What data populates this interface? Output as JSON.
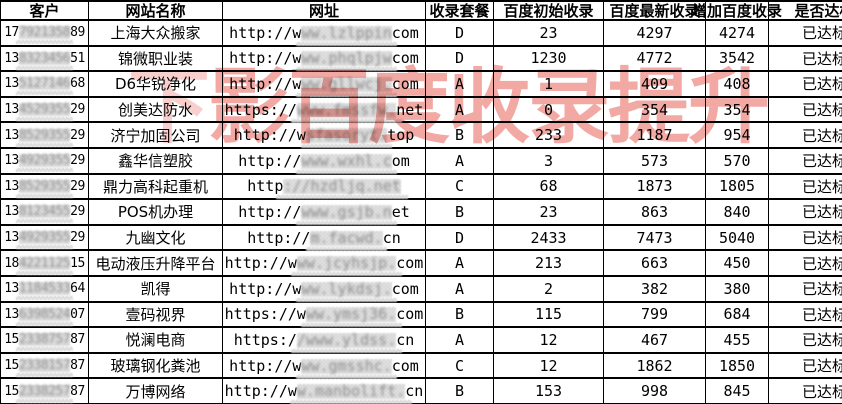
{
  "table": {
    "columns": [
      {
        "label": "客户"
      },
      {
        "label": "网站名称"
      },
      {
        "label": "网址"
      },
      {
        "label": "收录套餐"
      },
      {
        "label": "百度初始收录"
      },
      {
        "label": "百度最新收录"
      },
      {
        "label": "增加百度收录"
      },
      {
        "label": "是否达标"
      }
    ],
    "rows": [
      {
        "phone_pre": "17",
        "phone_hid": "7921358",
        "phone_suf": "89",
        "name": "上海大众搬家",
        "url_pre": "http://w",
        "url_hid": "ww.lzlppin",
        "url_suf": "com",
        "plan": "D",
        "init": "23",
        "last": "4297",
        "inc": "4274",
        "status": "已达标"
      },
      {
        "phone_pre": "13",
        "phone_hid": "8323456",
        "phone_suf": "51",
        "name": "锦微职业装",
        "url_pre": "http://w",
        "url_hid": "ww.phqlpjw",
        "url_suf": "com",
        "plan": "D",
        "init": "1230",
        "last": "4772",
        "inc": "3542",
        "status": "已达标"
      },
      {
        "phone_pre": "13",
        "phone_hid": "5127146",
        "phone_suf": "68",
        "name": "D6华锐净化",
        "url_pre": "http://w",
        "url_hid": "ww.gllwcj.",
        "url_suf": "com",
        "plan": "A",
        "init": "1",
        "last": "409",
        "inc": "408",
        "status": "已达标"
      },
      {
        "phone_pre": "13",
        "phone_hid": "4529355",
        "phone_suf": "29",
        "name": "创美达防水",
        "url_pre": "https://",
        "url_hid": "www.fmssfw.",
        "url_suf": "net",
        "plan": "A",
        "init": "0",
        "last": "354",
        "inc": "354",
        "status": "已达标"
      },
      {
        "phone_pre": "13",
        "phone_hid": "8529355",
        "phone_suf": "29",
        "name": "济宁加固公司",
        "url_pre": "http://w",
        "url_hid": "sfasoryt.",
        "url_suf": "top",
        "plan": "B",
        "init": "233",
        "last": "1187",
        "inc": "954",
        "status": "已达标"
      },
      {
        "phone_pre": "13",
        "phone_hid": "4929355",
        "phone_suf": "29",
        "name": "鑫华信塑胶",
        "url_pre": "http://",
        "url_hid": "www.wxhl.c",
        "url_suf": "om",
        "plan": "A",
        "init": "3",
        "last": "573",
        "inc": "570",
        "status": "已达标"
      },
      {
        "phone_pre": "13",
        "phone_hid": "8529355",
        "phone_suf": "29",
        "name": "鼎力高科起重机",
        "url_pre": "http",
        "url_hid": "://hzdljq.net",
        "url_suf": "",
        "plan": "C",
        "init": "68",
        "last": "1873",
        "inc": "1805",
        "status": "已达标"
      },
      {
        "phone_pre": "13",
        "phone_hid": "8123455",
        "phone_suf": "29",
        "name": "POS机办理",
        "url_pre": "http://",
        "url_hid": "www.gsjb.n",
        "url_suf": "et",
        "plan": "B",
        "init": "23",
        "last": "863",
        "inc": "840",
        "status": "已达标"
      },
      {
        "phone_pre": "13",
        "phone_hid": "4929355",
        "phone_suf": "29",
        "name": "九幽文化",
        "url_pre": "http://",
        "url_hid": "m.facwd.",
        "url_suf": "cn",
        "plan": "D",
        "init": "2433",
        "last": "7473",
        "inc": "5040",
        "status": "已达标"
      },
      {
        "phone_pre": "18",
        "phone_hid": "4221125",
        "phone_suf": "15",
        "name": "电动液压升降平台",
        "url_pre": "http://w",
        "url_hid": "ww.jcyhsjp.",
        "url_suf": "com",
        "plan": "A",
        "init": "213",
        "last": "663",
        "inc": "450",
        "status": "已达标"
      },
      {
        "phone_pre": "13",
        "phone_hid": "1184533",
        "phone_suf": "64",
        "name": "凯得",
        "url_pre": "http://w",
        "url_hid": "ww.lykdsj.",
        "url_suf": "com",
        "plan": "A",
        "init": "2",
        "last": "382",
        "inc": "380",
        "status": "已达标"
      },
      {
        "phone_pre": "13",
        "phone_hid": "6398524",
        "phone_suf": "07",
        "name": "壹码视界",
        "url_pre": "https://w",
        "url_hid": "ww.ymsj36.",
        "url_suf": "com",
        "plan": "B",
        "init": "115",
        "last": "799",
        "inc": "684",
        "status": "已达标"
      },
      {
        "phone_pre": "15",
        "phone_hid": "2338757",
        "phone_suf": "87",
        "name": "悦澜电商",
        "url_pre": "https:/",
        "url_hid": "/www.yldss.",
        "url_suf": "cn",
        "plan": "A",
        "init": "12",
        "last": "467",
        "inc": "455",
        "status": "已达标"
      },
      {
        "phone_pre": "15",
        "phone_hid": "2338157",
        "phone_suf": "87",
        "name": "玻璃钢化粪池",
        "url_pre": "http://w",
        "url_hid": "ww.gmsshc.",
        "url_suf": "com",
        "plan": "C",
        "init": "12",
        "last": "1862",
        "inc": "1850",
        "status": "已达标"
      },
      {
        "phone_pre": "15",
        "phone_hid": "2338257",
        "phone_suf": "87",
        "name": "万博网络",
        "url_pre": "http://w",
        "url_hid": "w.manbolift.",
        "url_suf": "cn",
        "plan": "B",
        "init": "153",
        "last": "998",
        "inc": "845",
        "status": "已达标"
      }
    ]
  },
  "watermark": {
    "lead": "下",
    "text": "影百度收录提升",
    "color": "#e23e33"
  }
}
